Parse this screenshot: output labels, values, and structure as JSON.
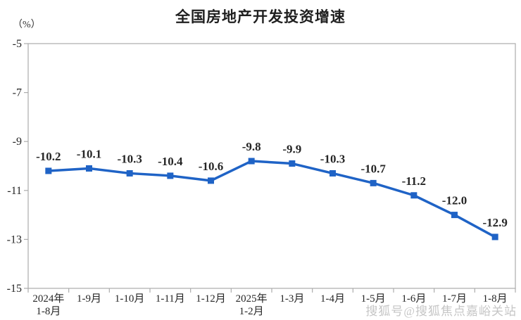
{
  "title": "全国房地产开发投资增速",
  "y_unit_label": "（%）",
  "watermark": "搜狐号@搜狐焦点嘉峪关站",
  "chart_data": {
    "type": "line",
    "title": "全国房地产开发投资增速",
    "ylabel": "（%）",
    "xlabel": "",
    "categories": [
      "2024年\n1-8月",
      "1-9月",
      "1-10月",
      "1-11月",
      "1-12月",
      "2025年\n1-2月",
      "1-3月",
      "1-4月",
      "1-5月",
      "1-6月",
      "1-7月",
      "1-8月"
    ],
    "values": [
      -10.2,
      -10.1,
      -10.3,
      -10.4,
      -10.6,
      -9.8,
      -9.9,
      -10.3,
      -10.7,
      -11.2,
      -12.0,
      -12.9
    ],
    "data_labels": [
      "-10.2",
      "-10.1",
      "-10.3",
      "-10.4",
      "-10.6",
      "-9.8",
      "-9.9",
      "-10.3",
      "-10.7",
      "-11.2",
      "-12.0",
      "-12.9"
    ],
    "ylim": [
      -15,
      -5
    ],
    "yticks": [
      -5,
      -7,
      -9,
      -11,
      -13,
      -15
    ],
    "grid": false,
    "legend": "none",
    "marker": "square",
    "line_color": "#1F63C6",
    "axis_color": "#ACACAC",
    "label_color": "#262626"
  }
}
